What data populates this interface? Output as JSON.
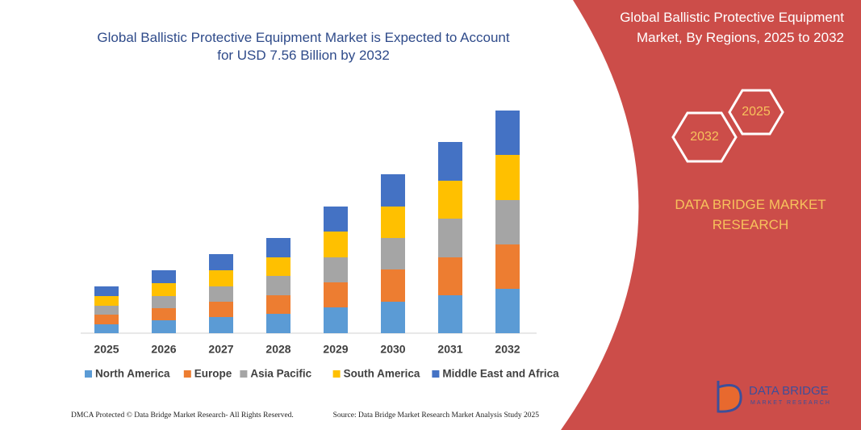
{
  "chart_data": {
    "type": "bar",
    "stacked": true,
    "title": "Global Ballistic Protective Equipment Market is Expected to Account for USD 7.56 Billion by 2032",
    "categories": [
      "2025",
      "2026",
      "2027",
      "2028",
      "2029",
      "2030",
      "2031",
      "2032"
    ],
    "series": [
      {
        "name": "North America",
        "color": "#5b9bd5",
        "values": [
          11,
          16,
          20,
          24,
          32,
          39,
          47,
          55
        ]
      },
      {
        "name": "Europe",
        "color": "#ed7d31",
        "values": [
          12,
          15,
          19,
          23,
          31,
          40,
          47,
          55
        ]
      },
      {
        "name": "Asia Pacific",
        "color": "#a5a5a5",
        "values": [
          11,
          15,
          19,
          24,
          31,
          39,
          48,
          55
        ]
      },
      {
        "name": "South America",
        "color": "#ffc000",
        "values": [
          12,
          16,
          20,
          23,
          32,
          39,
          47,
          56
        ]
      },
      {
        "name": "Middle East and Africa",
        "color": "#4472c4",
        "values": [
          12,
          16,
          20,
          24,
          31,
          40,
          48,
          55
        ]
      }
    ],
    "legend": "bottom"
  },
  "panel": {
    "title": "Global Ballistic Protective Equipment Market, By Regions, 2025 to 2032",
    "hex_right": "2025",
    "hex_left": "2032",
    "brand": "DATA BRIDGE MARKET RESEARCH",
    "logo_name": "DATA BRIDGE",
    "logo_sub": "MARKET RESEARCH"
  },
  "footer": {
    "left": "DMCA Protected © Data Bridge Market Research- All Rights Reserved.",
    "right": "Source: Data Bridge Market Research Market Analysis Study 2025"
  }
}
